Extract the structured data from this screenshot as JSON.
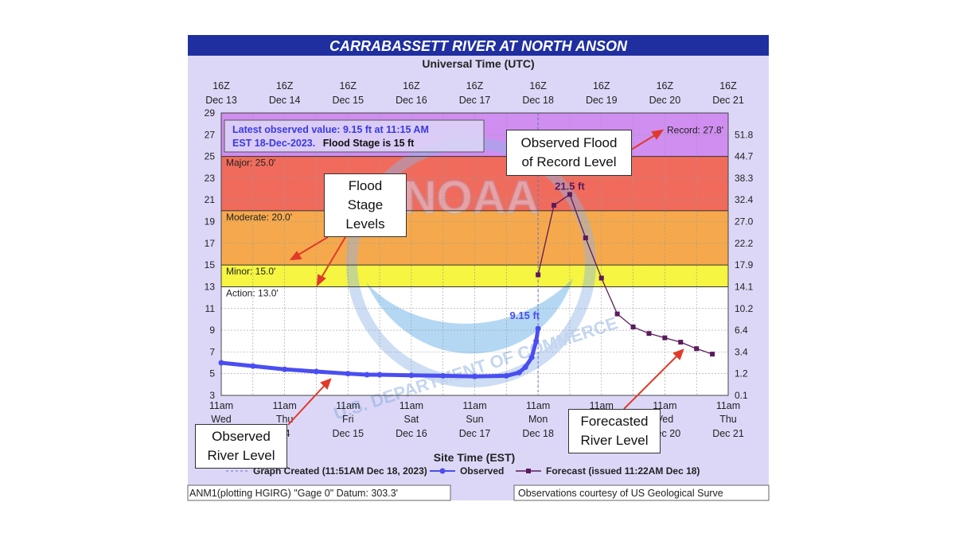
{
  "chart_data": {
    "type": "line",
    "title": "CARRABASSETT RIVER AT NORTH ANSON",
    "top_axis_label": "Universal Time (UTC)",
    "xlabel": "Site Time (EST)",
    "top_ticks": [
      {
        "l1": "16Z",
        "l2": "Dec 13"
      },
      {
        "l1": "16Z",
        "l2": "Dec 14"
      },
      {
        "l1": "16Z",
        "l2": "Dec 15"
      },
      {
        "l1": "16Z",
        "l2": "Dec 16"
      },
      {
        "l1": "16Z",
        "l2": "Dec 17"
      },
      {
        "l1": "16Z",
        "l2": "Dec 18"
      },
      {
        "l1": "16Z",
        "l2": "Dec 19"
      },
      {
        "l1": "16Z",
        "l2": "Dec 20"
      },
      {
        "l1": "16Z",
        "l2": "Dec 21"
      }
    ],
    "bottom_ticks": [
      {
        "l1": "11am",
        "l2": "Wed",
        "l3": ""
      },
      {
        "l1": "11am",
        "l2": "Thu",
        "l3": "14"
      },
      {
        "l1": "11am",
        "l2": "Fri",
        "l3": "Dec 15"
      },
      {
        "l1": "11am",
        "l2": "Sat",
        "l3": "Dec 16"
      },
      {
        "l1": "11am",
        "l2": "Sun",
        "l3": "Dec 17"
      },
      {
        "l1": "11am",
        "l2": "Mon",
        "l3": "Dec 18"
      },
      {
        "l1": "11am",
        "l2": "",
        "l3": ""
      },
      {
        "l1": "11am",
        "l2": "Ved",
        "l3": "Dec 20"
      },
      {
        "l1": "11am",
        "l2": "Thu",
        "l3": "Dec 21"
      }
    ],
    "xlim": [
      0,
      8
    ],
    "ylim": [
      3,
      29
    ],
    "y_ticks": [
      3,
      5,
      7,
      9,
      11,
      13,
      15,
      17,
      19,
      21,
      23,
      25,
      27,
      29
    ],
    "right_ticks": [
      {
        "stage": 3,
        "label": "0.1"
      },
      {
        "stage": 5,
        "label": "1.2"
      },
      {
        "stage": 7,
        "label": "3.4"
      },
      {
        "stage": 9,
        "label": "6.4"
      },
      {
        "stage": 11,
        "label": "10.2"
      },
      {
        "stage": 13,
        "label": "14.1"
      },
      {
        "stage": 15,
        "label": "17.9"
      },
      {
        "stage": 17,
        "label": "22.2"
      },
      {
        "stage": 19,
        "label": "27.0"
      },
      {
        "stage": 21,
        "label": "32.4"
      },
      {
        "stage": 23,
        "label": "38.3"
      },
      {
        "stage": 25,
        "label": "44.7"
      },
      {
        "stage": 27,
        "label": "51.8"
      }
    ],
    "grid": true,
    "flood_bands": [
      {
        "from": 13,
        "to": 15,
        "color": "#f5f542"
      },
      {
        "from": 15,
        "to": 20,
        "color": "#f6a94c"
      },
      {
        "from": 20,
        "to": 25,
        "color": "#f06b5c"
      },
      {
        "from": 25,
        "to": 29,
        "color": "#cf8ef0"
      }
    ],
    "thresholds": [
      {
        "name": "Action",
        "label": "Action: 13.0'",
        "value": 13
      },
      {
        "name": "Minor",
        "label": "Minor: 15.0'",
        "value": 15
      },
      {
        "name": "Moderate",
        "label": "Moderate: 20.0'",
        "value": 20
      },
      {
        "name": "Major",
        "label": "Major: 25.0'",
        "value": 25
      },
      {
        "name": "Record",
        "label": "Record: 27.8'",
        "value": 27.8
      }
    ],
    "info_box": {
      "line1": "Latest observed value: 9.15 ft at 11:15 AM",
      "line2a": "EST 18-Dec-2023.",
      "line2b": "Flood Stage is 15 ft"
    },
    "graph_created_x": 5,
    "observed_peak_label": "9.15 ft",
    "forecast_peak_label": "21.5 ft",
    "series": [
      {
        "name": "Observed",
        "color": "#4a4ef0",
        "points": [
          [
            0,
            6.0
          ],
          [
            0.5,
            5.7
          ],
          [
            1,
            5.4
          ],
          [
            1.5,
            5.2
          ],
          [
            2,
            5.0
          ],
          [
            2.3,
            4.9
          ],
          [
            2.5,
            4.9
          ],
          [
            3,
            4.85
          ],
          [
            3.5,
            4.8
          ],
          [
            4,
            4.75
          ],
          [
            4.5,
            4.8
          ],
          [
            4.7,
            5.1
          ],
          [
            4.8,
            5.6
          ],
          [
            4.9,
            6.5
          ],
          [
            4.97,
            8.0
          ],
          [
            5,
            9.15
          ]
        ]
      },
      {
        "name": "Forecast",
        "color": "#5b1a5e",
        "points": [
          [
            5,
            14.1
          ],
          [
            5.25,
            20.5
          ],
          [
            5.5,
            21.5
          ],
          [
            5.75,
            17.5
          ],
          [
            6,
            13.8
          ],
          [
            6.25,
            10.5
          ],
          [
            6.5,
            9.3
          ],
          [
            6.75,
            8.7
          ],
          [
            7,
            8.3
          ],
          [
            7.25,
            7.9
          ],
          [
            7.5,
            7.3
          ],
          [
            7.75,
            6.8
          ]
        ]
      }
    ],
    "legend": {
      "graph_created": "Graph Created (11:51AM Dec 18, 2023)",
      "observed": "Observed",
      "forecast": "Forecast (issued 11:22AM Dec 18)"
    },
    "footer_left": "ANM1(plotting HGIRG) \"Gage 0\" Datum: 303.3'",
    "footer_right": "Observations courtesy of US Geological Surve",
    "watermark_text": "NOAA",
    "watermark_arc": "U.S. DEPARTMENT OF COMMERCE"
  },
  "callouts": [
    {
      "id": "record",
      "text": "Observed Flood\nof Record Level"
    },
    {
      "id": "stages",
      "text": "Flood\nStage\nLevels"
    },
    {
      "id": "observed",
      "text": "Observed\nRiver Level"
    },
    {
      "id": "forecast",
      "text": "Forecasted\nRiver Level"
    }
  ]
}
